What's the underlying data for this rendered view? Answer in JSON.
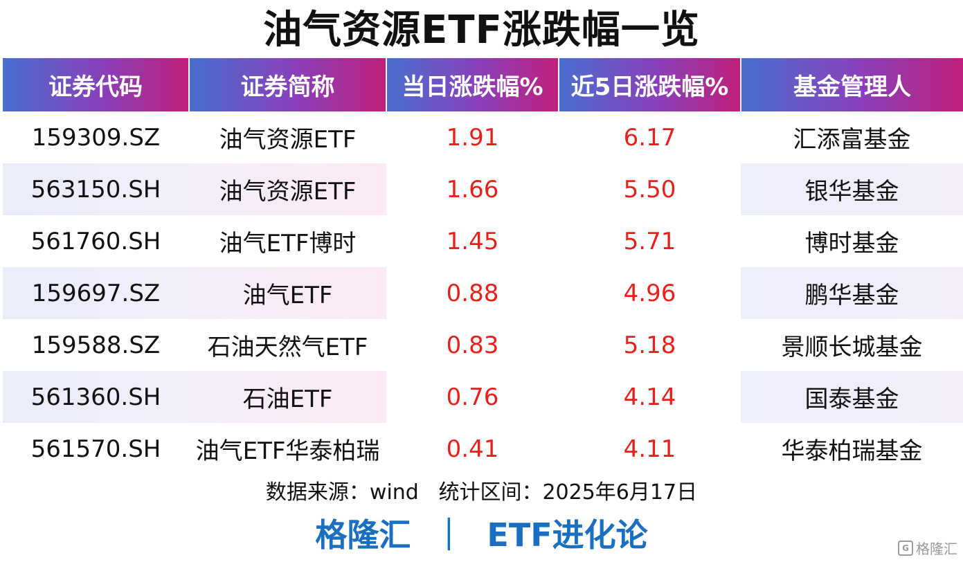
{
  "title": "油气资源ETF涨跌幅一览",
  "headers": [
    "证券代码",
    "证券简称",
    "当日涨跌幅%",
    "近5日涨跌幅%",
    "基金管理人"
  ],
  "rows": [
    [
      "159309.SZ",
      "油气资源ETF",
      "1.91",
      "6.17",
      "汇添富基金"
    ],
    [
      "563150.SH",
      "油气资源ETF",
      "1.66",
      "5.50",
      "银华基金"
    ],
    [
      "561760.SH",
      "油气ETF博时",
      "1.45",
      "5.71",
      "博时基金"
    ],
    [
      "159697.SZ",
      "油气ETF",
      "0.88",
      "4.96",
      "鹏华基金"
    ],
    [
      "159588.SZ",
      "石油天然气ETF",
      "0.83",
      "5.18",
      "景顺长城基金"
    ],
    [
      "561360.SH",
      "石油ETF",
      "0.76",
      "4.14",
      "国泰基金"
    ],
    [
      "561570.SH",
      "油气ETF华泰柏瑞",
      "0.41",
      "4.11",
      "华泰柏瑞基金"
    ]
  ],
  "source": "数据来源：wind   统计区间：2025年6月17日",
  "brand": "格隆汇  ｜  ETF进化论",
  "watermark": {
    "icon": "G",
    "text": "格隆汇"
  },
  "colors": {
    "positive": "#e8201c",
    "brand": "#1a6fc0"
  }
}
